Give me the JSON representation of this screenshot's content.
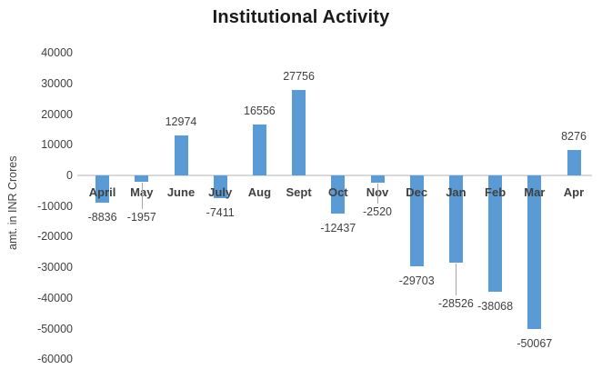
{
  "chart_data": {
    "type": "bar",
    "title": "Institutional Activity",
    "ylabel": "amt. in INR Crores",
    "xlabel": "",
    "categories": [
      "April",
      "May",
      "June",
      "July",
      "Aug",
      "Sept",
      "Oct",
      "Nov",
      "Dec",
      "Jan",
      "Feb",
      "Mar",
      "Apr"
    ],
    "values": [
      -8836,
      -1957,
      12974,
      -7411,
      16556,
      27756,
      -12437,
      -2520,
      -29703,
      -28526,
      -38068,
      -50067,
      8276
    ],
    "data_labels": [
      "-8836",
      "-1957",
      "12974",
      "-7411",
      "16556",
      "27756",
      "-12437",
      "-2520",
      "-29703",
      "-28526",
      "-38068",
      "-50067",
      "8276"
    ],
    "ylim": [
      -60000,
      40000
    ],
    "ytick_step": 10000,
    "ytick_labels": [
      "40000",
      "30000",
      "20000",
      "10000",
      "0",
      "-10000",
      "-20000",
      "-30000",
      "-40000",
      "-50000",
      "-60000"
    ],
    "grid": false,
    "legend": "none",
    "labels_with_leader_lines": [
      "May",
      "Nov",
      "Jan"
    ],
    "colors": {
      "bar": "#5b9bd5",
      "axis_line": "#d9d9d9",
      "leader_line": "#a6a6a6",
      "text": "#404040",
      "title_text": "#1a1a1a",
      "background": "#ffffff"
    }
  }
}
